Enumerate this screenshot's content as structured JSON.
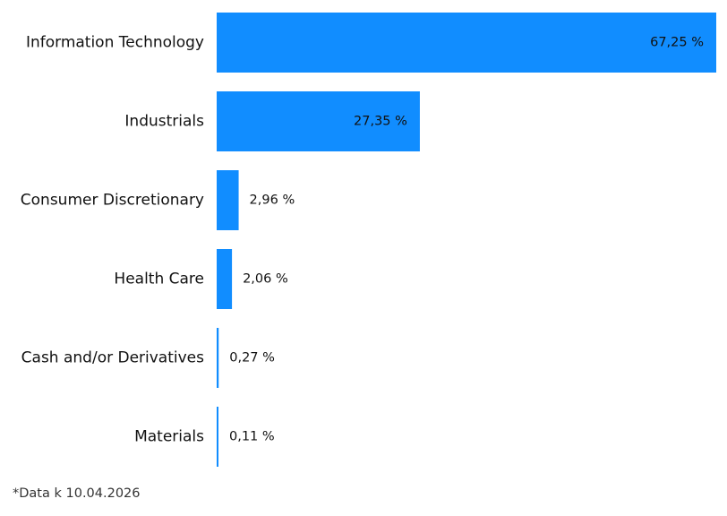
{
  "chart_data": {
    "type": "bar",
    "orientation": "horizontal",
    "categories": [
      "Information Technology",
      "Industrials",
      "Consumer Discretionary",
      "Health Care",
      "Cash and/or Derivatives",
      "Materials"
    ],
    "values": [
      67.25,
      27.35,
      2.96,
      2.06,
      0.27,
      0.11
    ],
    "value_labels": [
      "67,25 %",
      "27,35 %",
      "2,96 %",
      "2,06 %",
      "0,27 %",
      "0,11 %"
    ],
    "title": "",
    "xlabel": "",
    "ylabel": "",
    "xlim": [
      0,
      67.25
    ],
    "grid": false,
    "legend": "none",
    "bar_color": "#118dff",
    "footnote": "*Data k 10.04.2026"
  }
}
